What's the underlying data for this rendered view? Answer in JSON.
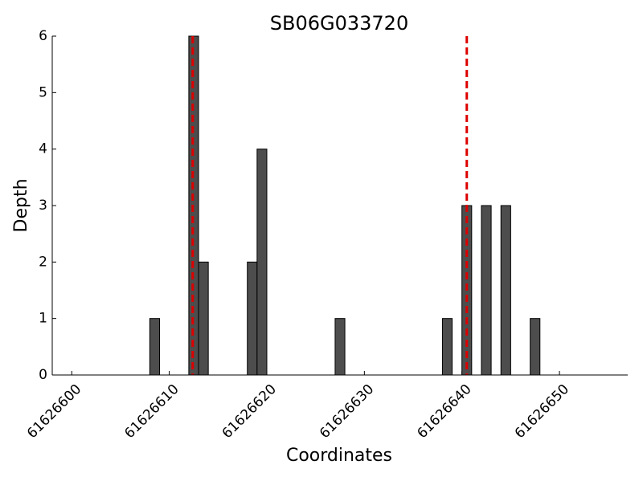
{
  "chart_data": {
    "type": "bar",
    "title": "SB06G033720",
    "xlabel": "Coordinates",
    "ylabel": "Depth",
    "x": [
      61626608,
      61626612,
      61626613,
      61626618,
      61626619,
      61626627,
      61626638,
      61626640,
      61626642,
      61626644,
      61626647
    ],
    "values": [
      1,
      6,
      2,
      2,
      4,
      1,
      1,
      3,
      3,
      3,
      1
    ],
    "bar_width": 1,
    "color": "#4d4d4d",
    "edgecolor": "#000000",
    "vlines": {
      "x": [
        61626612.4,
        61626640.5
      ],
      "color": "#dd0000"
    },
    "xlim": [
      61626598,
      61626657
    ],
    "xticks": [
      61626600,
      61626610,
      61626620,
      61626630,
      61626640,
      61626650
    ],
    "ylim": [
      0,
      6
    ],
    "yticks": [
      0,
      1,
      2,
      3,
      4,
      5,
      6
    ]
  }
}
